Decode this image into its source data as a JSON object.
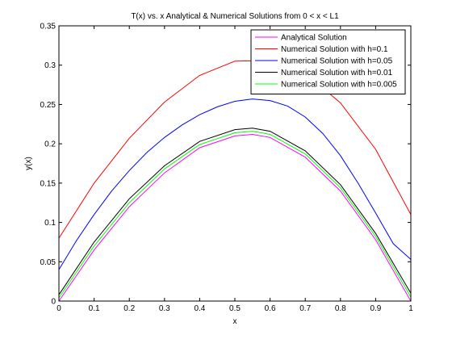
{
  "chart_data": {
    "type": "line",
    "title": "T(x) vs. x Analytical & Numerical Solutions from 0 < x < L1",
    "xlabel": "x",
    "ylabel": "y(x)",
    "xlim": [
      0,
      1
    ],
    "ylim": [
      0,
      0.35
    ],
    "xticks": [
      "0",
      "0.1",
      "0.2",
      "0.3",
      "0.4",
      "0.5",
      "0.6",
      "0.7",
      "0.8",
      "0.9",
      "1"
    ],
    "yticks": [
      "0",
      "0.05",
      "0.1",
      "0.15",
      "0.2",
      "0.25",
      "0.3",
      "0.35"
    ],
    "grid": false,
    "legend_position": "top-right",
    "series": [
      {
        "name": "Analytical Solution",
        "color": "#ff00ff",
        "x": [
          0,
          0.1,
          0.2,
          0.3,
          0.4,
          0.5,
          0.55,
          0.6,
          0.7,
          0.8,
          0.9,
          1.0
        ],
        "y": [
          0.0,
          0.065,
          0.12,
          0.163,
          0.195,
          0.21,
          0.212,
          0.208,
          0.183,
          0.14,
          0.078,
          0.0
        ]
      },
      {
        "name": "Numerical Solution with h=0.1",
        "color": "#ff0000",
        "x": [
          0,
          0.1,
          0.2,
          0.3,
          0.4,
          0.5,
          0.6,
          0.7,
          0.8,
          0.9,
          1.0
        ],
        "y": [
          0.08,
          0.15,
          0.207,
          0.253,
          0.287,
          0.305,
          0.306,
          0.29,
          0.252,
          0.193,
          0.11
        ]
      },
      {
        "name": "Numerical Solution with h=0.05",
        "color": "#0000ff",
        "x": [
          0,
          0.05,
          0.1,
          0.15,
          0.2,
          0.25,
          0.3,
          0.35,
          0.4,
          0.45,
          0.5,
          0.55,
          0.6,
          0.65,
          0.7,
          0.75,
          0.8,
          0.85,
          0.9,
          0.95,
          1.0
        ],
        "y": [
          0.04,
          0.077,
          0.11,
          0.14,
          0.166,
          0.189,
          0.208,
          0.224,
          0.237,
          0.247,
          0.254,
          0.257,
          0.255,
          0.248,
          0.234,
          0.213,
          0.185,
          0.15,
          0.112,
          0.073,
          0.053
        ]
      },
      {
        "name": "Numerical Solution with h=0.01",
        "color": "#000000",
        "x": [
          0,
          0.1,
          0.2,
          0.3,
          0.4,
          0.5,
          0.55,
          0.6,
          0.7,
          0.8,
          0.9,
          1.0
        ],
        "y": [
          0.008,
          0.075,
          0.13,
          0.172,
          0.203,
          0.218,
          0.22,
          0.216,
          0.191,
          0.148,
          0.086,
          0.01
        ]
      },
      {
        "name": "Numerical Solution with h=0.005",
        "color": "#00ff00",
        "x": [
          0,
          0.1,
          0.2,
          0.3,
          0.4,
          0.5,
          0.55,
          0.6,
          0.7,
          0.8,
          0.9,
          1.0
        ],
        "y": [
          0.004,
          0.07,
          0.125,
          0.168,
          0.199,
          0.214,
          0.216,
          0.212,
          0.187,
          0.144,
          0.082,
          0.005
        ]
      }
    ]
  }
}
